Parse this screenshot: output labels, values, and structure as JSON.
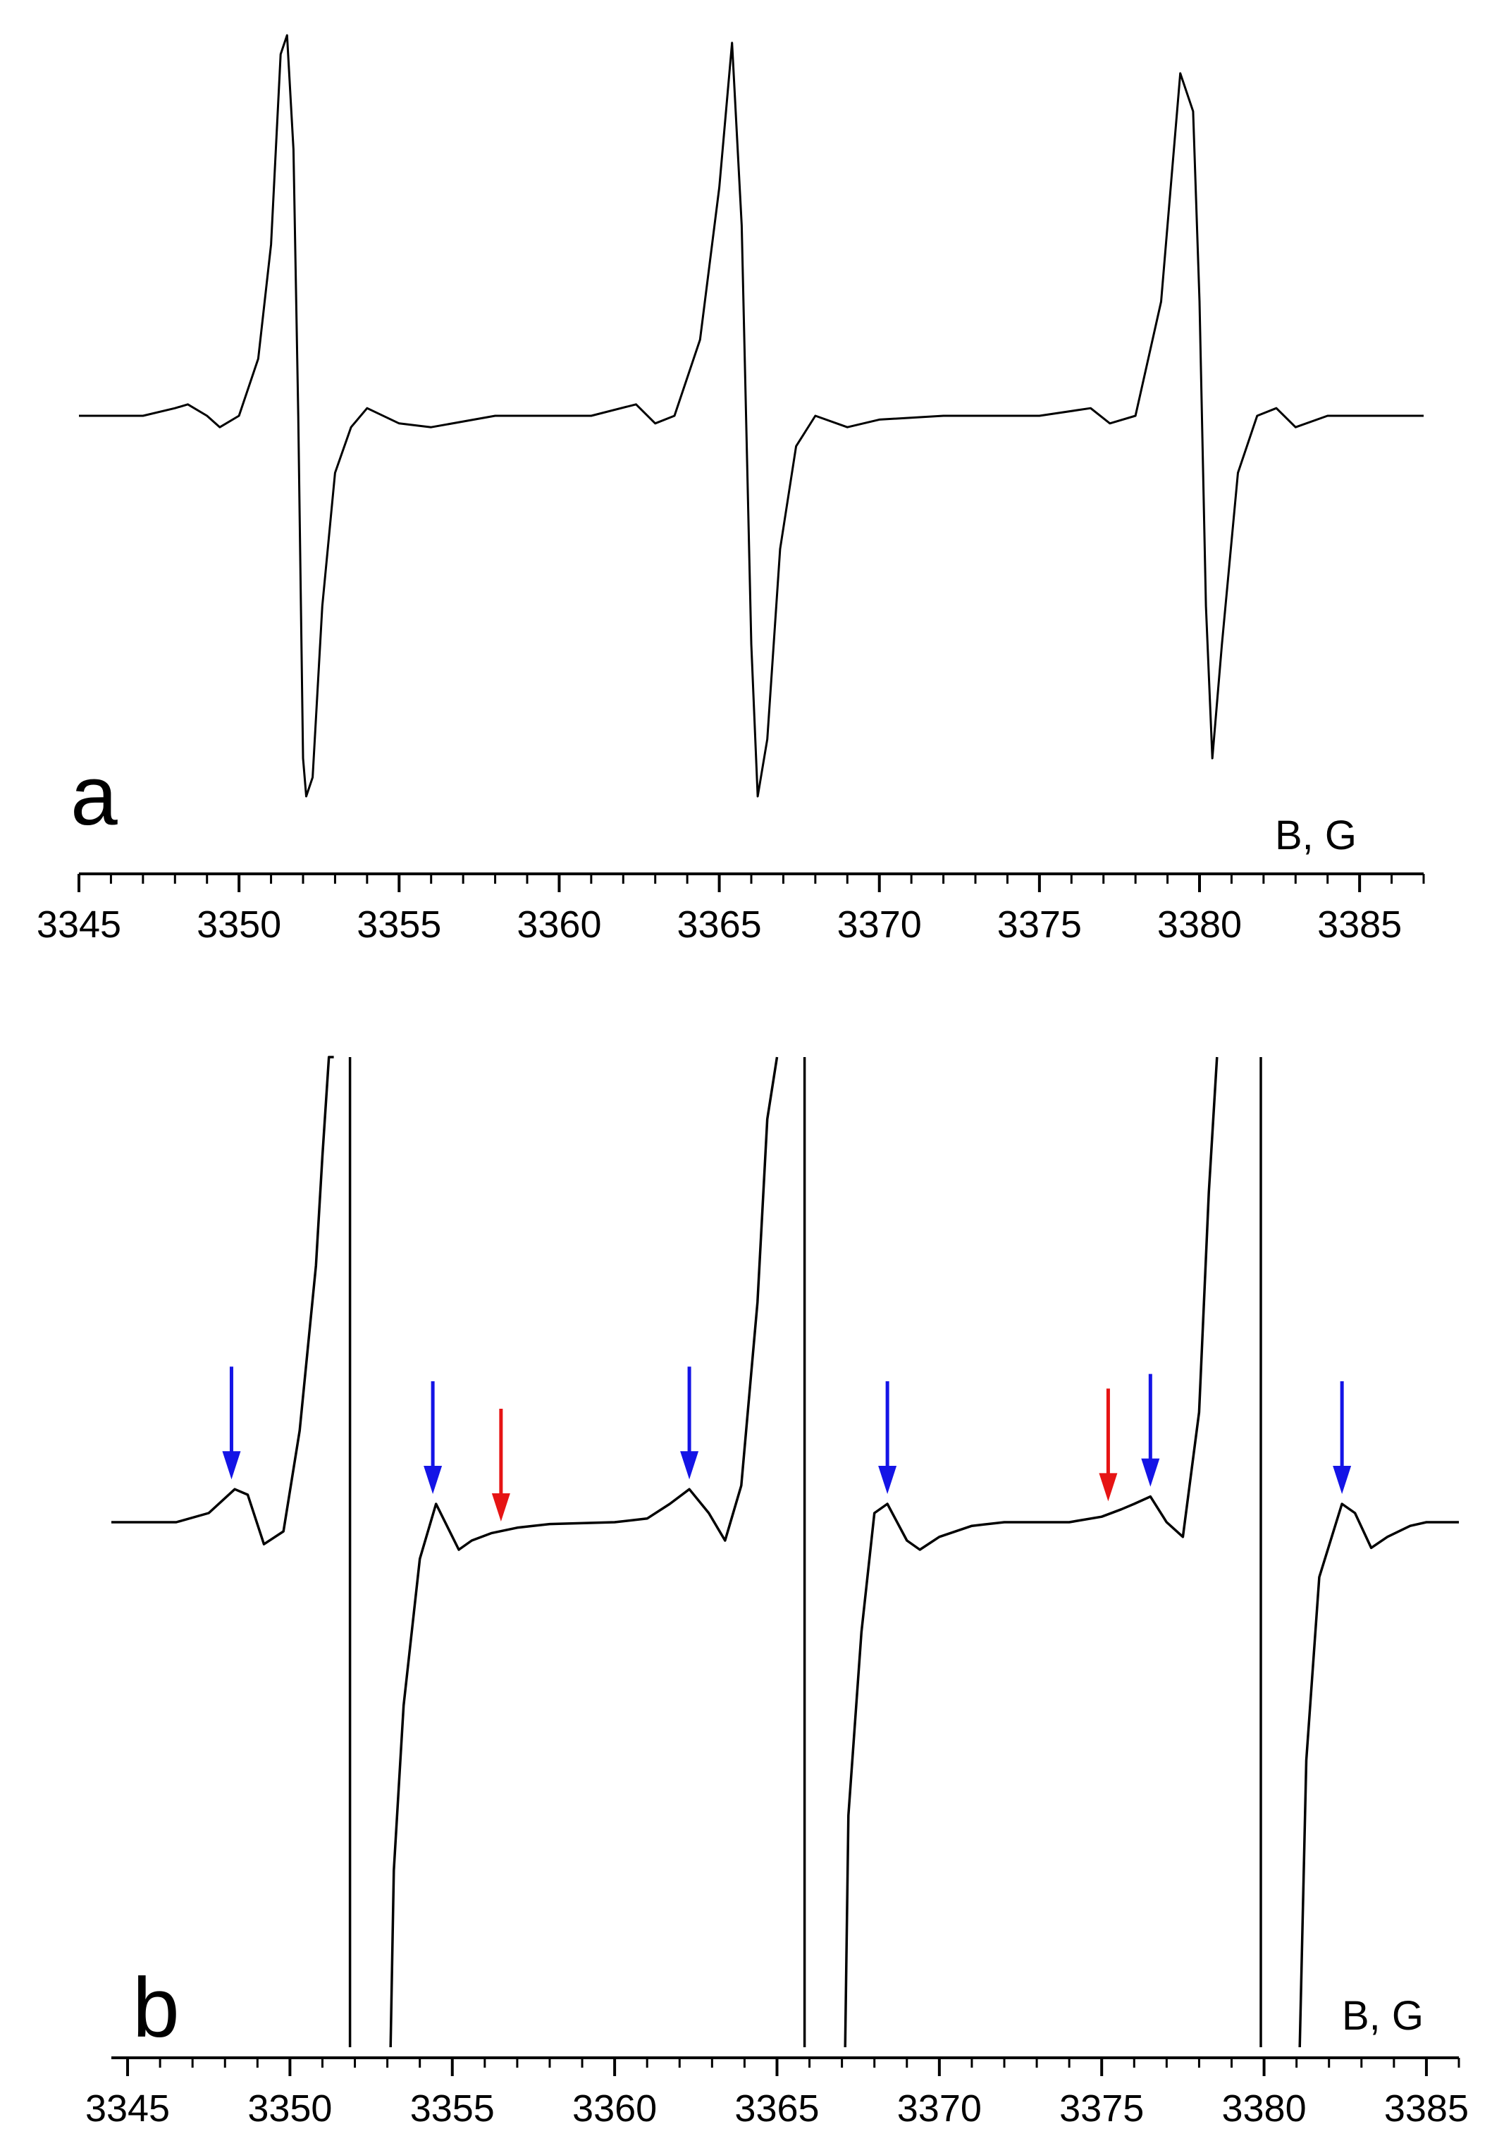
{
  "chart_data": [
    {
      "type": "line",
      "panel_label": "a",
      "xlabel": "B, G",
      "ylabel": "",
      "xlim": [
        3345,
        3387
      ],
      "xticks": [
        3345,
        3350,
        3355,
        3360,
        3365,
        3370,
        3375,
        3380,
        3385
      ],
      "grid": false,
      "series": [
        {
          "x": [
            3345.0,
            3347.0,
            3348.0,
            3348.4,
            3349.0,
            3349.4,
            3350.0,
            3350.6,
            3351.0,
            3351.3,
            3351.5,
            3351.7,
            3351.85,
            3352.0,
            3352.1,
            3352.3,
            3352.6,
            3353.0,
            3353.5,
            3354.0,
            3355.0,
            3356.0,
            3358.0,
            3361.0,
            3362.4,
            3363.0,
            3363.6,
            3364.4,
            3365.0,
            3365.4,
            3365.7,
            3366.0,
            3366.2,
            3366.5,
            3366.9,
            3367.4,
            3368.0,
            3369.0,
            3370.0,
            3372.0,
            3375.0,
            3376.6,
            3377.2,
            3378.0,
            3378.8,
            3379.4,
            3379.8,
            3380.0,
            3380.2,
            3380.4,
            3380.7,
            3381.2,
            3381.8,
            3382.4,
            3383.0,
            3384.0,
            3387.0
          ],
          "y": [
            0.0,
            0.0,
            0.02,
            0.03,
            0.0,
            -0.03,
            0.0,
            0.15,
            0.45,
            0.95,
            1.0,
            0.7,
            0.0,
            -0.9,
            -1.0,
            -0.95,
            -0.5,
            -0.15,
            -0.03,
            0.02,
            -0.02,
            -0.03,
            0.0,
            0.0,
            0.03,
            -0.02,
            0.0,
            0.2,
            0.6,
            0.98,
            0.5,
            -0.6,
            -1.0,
            -0.85,
            -0.35,
            -0.08,
            0.0,
            -0.03,
            -0.01,
            0.0,
            0.0,
            0.02,
            -0.02,
            0.0,
            0.3,
            0.9,
            0.8,
            0.3,
            -0.5,
            -0.9,
            -0.6,
            -0.15,
            0.0,
            0.02,
            -0.03,
            0.0,
            0.0
          ]
        }
      ]
    },
    {
      "type": "line",
      "panel_label": "b",
      "xlabel": "B, G",
      "ylabel": "",
      "xlim": [
        3344.5,
        3386
      ],
      "xticks": [
        3345,
        3350,
        3355,
        3360,
        3365,
        3370,
        3375,
        3380,
        3385
      ],
      "grid": false,
      "series": [
        {
          "x": [
            3344.5,
            3346.5,
            3347.5,
            3348.3,
            3348.7,
            3349.2,
            3349.8,
            3350.3,
            3350.8,
            3351.0,
            3351.2,
            3351.35
          ],
          "y": [
            0.0,
            0.0,
            0.05,
            0.18,
            0.15,
            -0.12,
            -0.05,
            0.5,
            1.4,
            2.0,
            2.6,
            3.0
          ]
        },
        {
          "x": [
            3351.85,
            3351.85
          ],
          "y": [
            3.0,
            -3.0
          ]
        },
        {
          "x": [
            3353.1,
            3353.2,
            3353.5,
            3354.0,
            3354.5,
            3355.2,
            3355.6,
            3356.2,
            3357.0,
            3358.0,
            3360.0,
            3361.0,
            3361.7,
            3362.3,
            3362.9,
            3363.4,
            3363.9,
            3364.4,
            3364.7,
            3365.0
          ],
          "y": [
            -3.0,
            -1.9,
            -1.0,
            -0.2,
            0.1,
            -0.15,
            -0.1,
            -0.06,
            -0.03,
            -0.01,
            0.0,
            0.02,
            0.1,
            0.18,
            0.05,
            -0.1,
            0.2,
            1.2,
            2.2,
            3.0
          ]
        },
        {
          "x": [
            3365.85,
            3365.85
          ],
          "y": [
            3.0,
            -3.0
          ]
        },
        {
          "x": [
            3367.1,
            3367.2,
            3367.6,
            3368.0,
            3368.4,
            3369.0,
            3369.4,
            3370.0,
            3371.0,
            3372.0,
            3374.0,
            3375.0,
            3375.6,
            3376.0,
            3376.5,
            3377.0,
            3377.5,
            3378.0,
            3378.3,
            3378.55
          ],
          "y": [
            -3.0,
            -1.6,
            -0.6,
            0.05,
            0.1,
            -0.1,
            -0.15,
            -0.08,
            -0.02,
            0.0,
            0.0,
            0.03,
            0.07,
            0.1,
            0.14,
            0.0,
            -0.08,
            0.6,
            1.8,
            3.0
          ]
        },
        {
          "x": [
            3379.9,
            3379.9
          ],
          "y": [
            3.0,
            -3.0
          ]
        },
        {
          "x": [
            3381.1,
            3381.3,
            3381.7,
            3382.4,
            3382.8,
            3383.3,
            3383.8,
            3384.5,
            3385.0,
            3386.0
          ],
          "y": [
            -3.0,
            -1.3,
            -0.3,
            0.1,
            0.05,
            -0.14,
            -0.08,
            -0.02,
            0.0,
            0.0
          ]
        }
      ],
      "annotations": [
        {
          "type": "arrow",
          "color": "#1414e6",
          "x": 3348.2,
          "y": 0.18
        },
        {
          "type": "arrow",
          "color": "#1414e6",
          "x": 3354.4,
          "y": 0.1
        },
        {
          "type": "arrow",
          "color": "#e61414",
          "x": 3356.5,
          "y": -0.05
        },
        {
          "type": "arrow",
          "color": "#1414e6",
          "x": 3362.3,
          "y": 0.18
        },
        {
          "type": "arrow",
          "color": "#1414e6",
          "x": 3368.4,
          "y": 0.1
        },
        {
          "type": "arrow",
          "color": "#e61414",
          "x": 3375.2,
          "y": 0.06
        },
        {
          "type": "arrow",
          "color": "#1414e6",
          "x": 3376.5,
          "y": 0.14
        },
        {
          "type": "arrow",
          "color": "#1414e6",
          "x": 3382.4,
          "y": 0.1
        }
      ]
    }
  ]
}
